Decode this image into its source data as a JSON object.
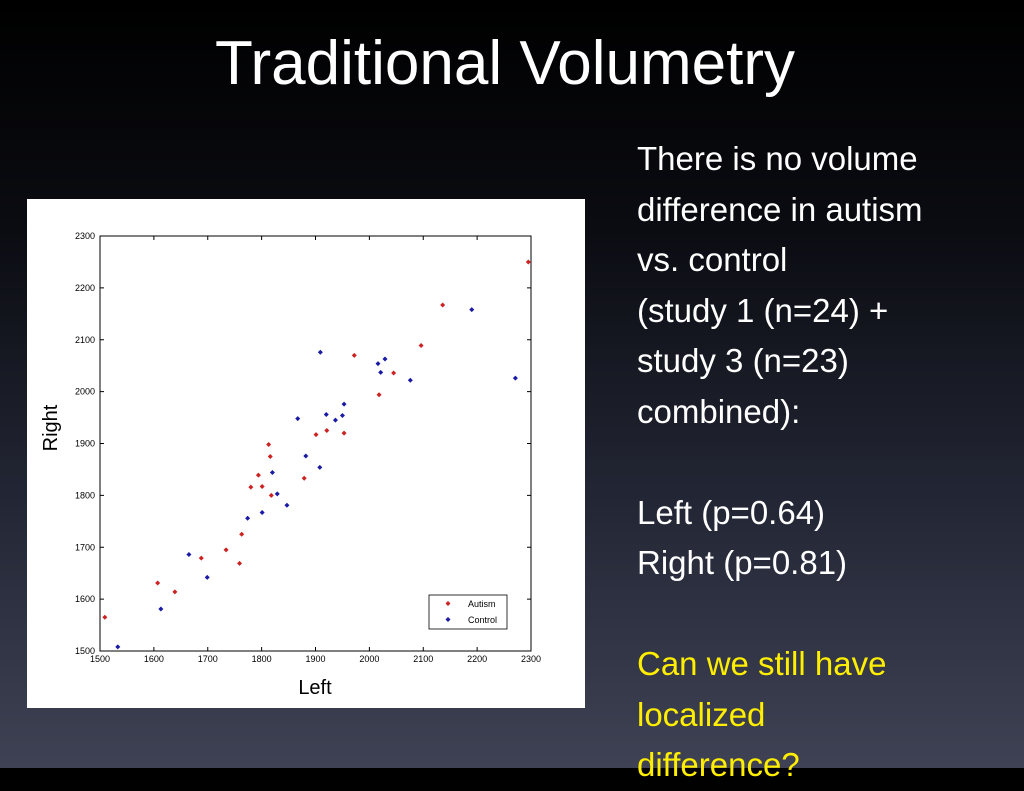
{
  "slide": {
    "title": "Traditional Volumetry",
    "text_lines": [
      "There is no volume",
      "difference in autism",
      "vs. control",
      "(study 1 (n=24) +",
      "study 3 (n=23)",
      "combined):"
    ],
    "stats_lines": [
      "Left (p=0.64)",
      "Right (p=0.81)"
    ],
    "question_lines": [
      "Can we still have",
      "localized",
      "difference?"
    ],
    "highlight_color": "#ffee00"
  },
  "chart_data": {
    "type": "scatter",
    "xlabel": "Left",
    "ylabel": "Right",
    "xlim": [
      1500,
      2300
    ],
    "ylim": [
      1500,
      2300
    ],
    "xticks": [
      1500,
      1600,
      1700,
      1800,
      1900,
      2000,
      2100,
      2200,
      2300
    ],
    "yticks": [
      1500,
      1600,
      1700,
      1800,
      1900,
      2000,
      2100,
      2200,
      2300
    ],
    "legend_position": "bottom-right",
    "series": [
      {
        "name": "Autism",
        "color": "#cc2222",
        "points": [
          [
            1509,
            1565
          ],
          [
            1607,
            1631
          ],
          [
            1639,
            1614
          ],
          [
            1688,
            1679
          ],
          [
            1734,
            1695
          ],
          [
            1759,
            1669
          ],
          [
            1763,
            1725
          ],
          [
            1780,
            1816
          ],
          [
            1794,
            1839
          ],
          [
            1801,
            1817
          ],
          [
            1813,
            1898
          ],
          [
            1816,
            1875
          ],
          [
            1818,
            1800
          ],
          [
            1879,
            1833
          ],
          [
            1901,
            1917
          ],
          [
            1921,
            1925
          ],
          [
            1953,
            1920
          ],
          [
            1972,
            2070
          ],
          [
            2018,
            1994
          ],
          [
            2045,
            2036
          ],
          [
            2096,
            2089
          ],
          [
            2136,
            2167
          ],
          [
            2295,
            2250
          ]
        ]
      },
      {
        "name": "Control",
        "color": "#1a1aa6",
        "points": [
          [
            1533,
            1508
          ],
          [
            1613,
            1581
          ],
          [
            1665,
            1686
          ],
          [
            1699,
            1642
          ],
          [
            1774,
            1756
          ],
          [
            1801,
            1767
          ],
          [
            1820,
            1844
          ],
          [
            1829,
            1803
          ],
          [
            1847,
            1781
          ],
          [
            1867,
            1948
          ],
          [
            1882,
            1876
          ],
          [
            1908,
            1854
          ],
          [
            1909,
            2076
          ],
          [
            1920,
            1956
          ],
          [
            1937,
            1945
          ],
          [
            1950,
            1954
          ],
          [
            1953,
            1976
          ],
          [
            2016,
            2054
          ],
          [
            2021,
            2037
          ],
          [
            2029,
            2063
          ],
          [
            2076,
            2022
          ],
          [
            2190,
            2158
          ],
          [
            2271,
            2026
          ]
        ]
      }
    ]
  }
}
